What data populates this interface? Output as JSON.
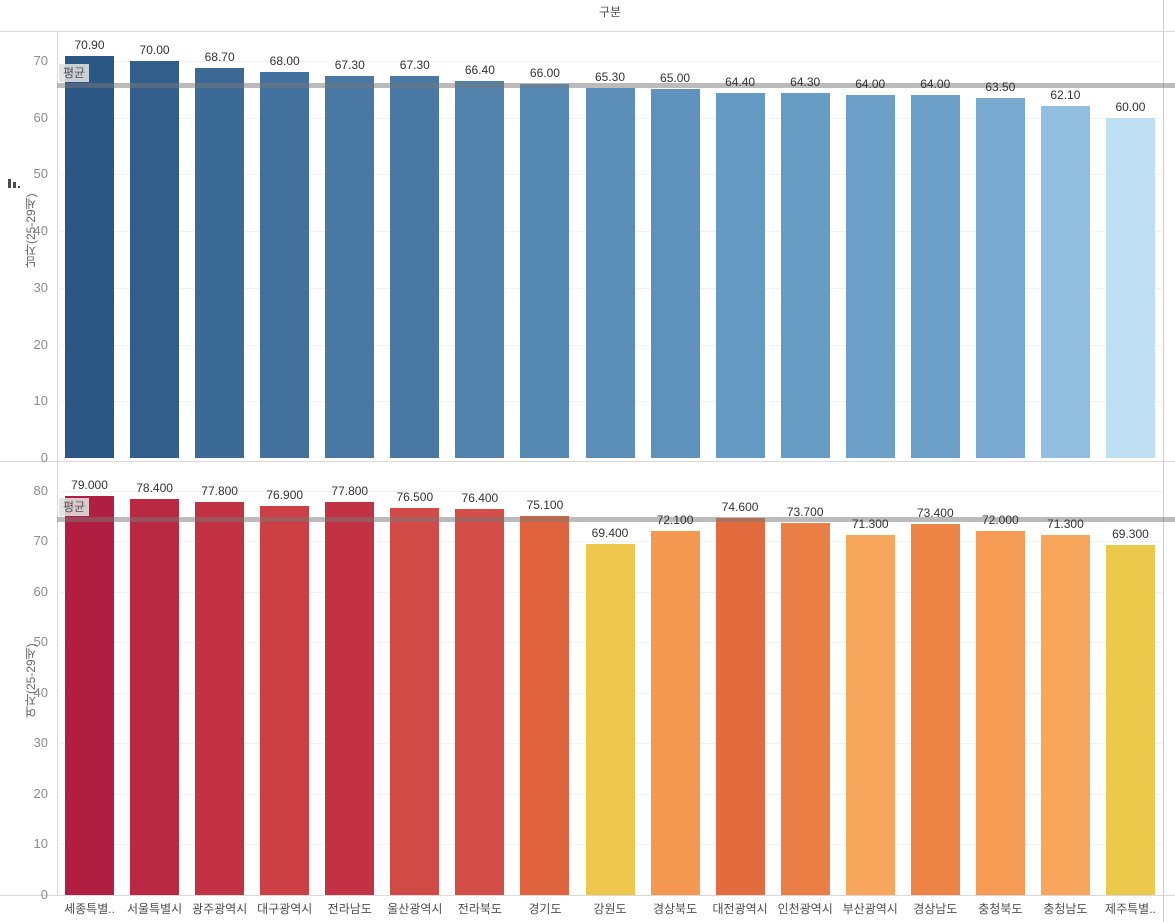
{
  "header": {
    "column_field_label": "구분"
  },
  "colors": {
    "grid": "#f2f2f2",
    "border": "#d9d9d9",
    "tick_label": "#8c8c8c",
    "value_label": "#333333",
    "category_label": "#4e4e4e",
    "reference_line": "rgba(120,120,120,0.5)",
    "reference_badge_bg": "#e0e0e0",
    "blue_dark": "#2a5783",
    "blue_light": "#bfdff2",
    "red_dark": "#b01f41",
    "yellow_light": "#edc94b"
  },
  "chart_data": [
    {
      "type": "bar",
      "axis_title": "남자(25-29세)",
      "ylabel": "남자(25-29세)",
      "categories": [
        "세종특별..",
        "서울특별시",
        "광주광역시",
        "대구광역시",
        "전라남도",
        "울산광역시",
        "전라북도",
        "경기도",
        "강원도",
        "경상북도",
        "대전광역시",
        "인천광역시",
        "부산광역시",
        "경상남도",
        "충청북도",
        "충청남도",
        "제주특별.."
      ],
      "values": [
        70.9,
        70.0,
        68.7,
        68.0,
        67.3,
        67.3,
        66.4,
        66.0,
        65.3,
        65.0,
        64.4,
        64.3,
        64.0,
        64.0,
        63.5,
        62.1,
        60.0
      ],
      "value_labels": [
        "70.90",
        "70.00",
        "68.70",
        "68.00",
        "67.30",
        "67.30",
        "66.40",
        "66.00",
        "65.30",
        "65.00",
        "64.40",
        "64.30",
        "64.00",
        "64.00",
        "63.50",
        "62.10",
        "60.00"
      ],
      "bar_colors": [
        "#2a5783",
        "#315e8b",
        "#3c6a97",
        "#42719e",
        "#4978a4",
        "#4978a4",
        "#5182ac",
        "#5588b2",
        "#5b8eb8",
        "#5e91bb",
        "#659ac2",
        "#669bc3",
        "#6b9fc8",
        "#6b9fc8",
        "#78a9d0",
        "#92bfe0",
        "#bfdff2"
      ],
      "yticks": [
        0,
        10,
        20,
        30,
        40,
        50,
        60,
        70
      ],
      "ylim": [
        0,
        75.3
      ],
      "grid": true,
      "legend_position": "none",
      "reference_line": {
        "label": "평균",
        "value": 65.72
      },
      "has_sort_icon": true
    },
    {
      "type": "bar",
      "axis_title": "여자(25-29세)",
      "ylabel": "여자(25-29세)",
      "categories": [
        "세종특별..",
        "서울특별시",
        "광주광역시",
        "대구광역시",
        "전라남도",
        "울산광역시",
        "전라북도",
        "경기도",
        "강원도",
        "경상북도",
        "대전광역시",
        "인천광역시",
        "부산광역시",
        "경상남도",
        "충청북도",
        "충청남도",
        "제주특별.."
      ],
      "values": [
        79.0,
        78.4,
        77.8,
        76.9,
        77.8,
        76.5,
        76.4,
        75.1,
        69.4,
        72.1,
        74.6,
        73.7,
        71.3,
        73.4,
        72.0,
        71.3,
        69.3
      ],
      "value_labels": [
        "79.000",
        "78.400",
        "77.800",
        "76.900",
        "77.800",
        "76.500",
        "76.400",
        "75.100",
        "69.400",
        "72.100",
        "74.600",
        "73.700",
        "71.300",
        "73.400",
        "72.000",
        "71.300",
        "69.300"
      ],
      "bar_colors": [
        "#b01f41",
        "#ba2942",
        "#c33144",
        "#cc4045",
        "#c33144",
        "#d24a46",
        "#d44d46",
        "#e0633f",
        "#edc84c",
        "#f59851",
        "#e26c3e",
        "#eb7e44",
        "#f8a65b",
        "#ee8546",
        "#f69b53",
        "#f8a65b",
        "#edc94b"
      ],
      "yticks": [
        0,
        10,
        20,
        30,
        40,
        50,
        60,
        70,
        80
      ],
      "ylim": [
        0,
        85.7
      ],
      "grid": true,
      "legend_position": "none",
      "reference_line": {
        "label": "평균",
        "value": 74.41
      },
      "has_sort_icon": false
    }
  ]
}
